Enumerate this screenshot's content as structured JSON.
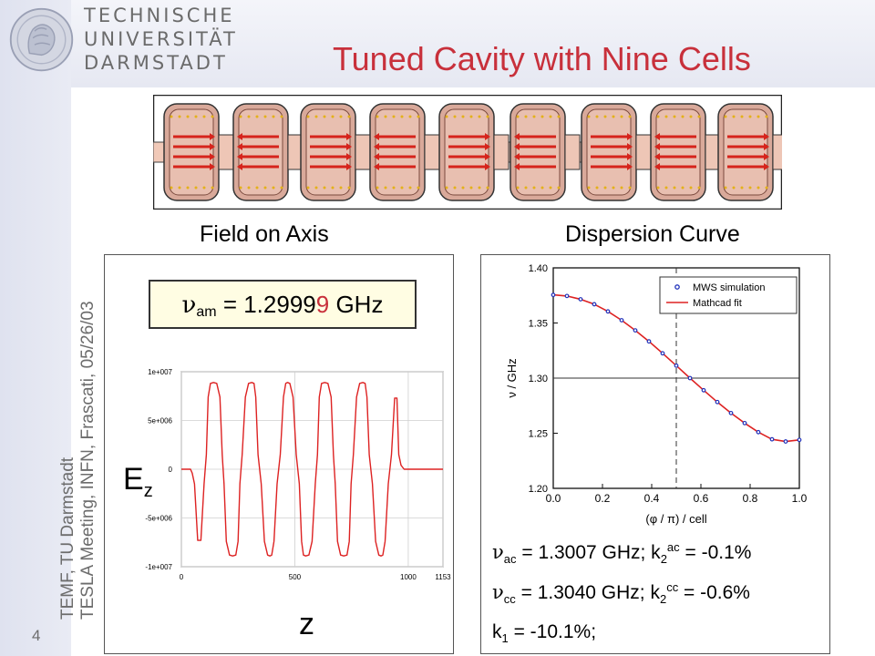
{
  "header": {
    "university": [
      "TECHNISCHE",
      "UNIVERSITÄT",
      "DARMSTADT"
    ],
    "title": "Tuned Cavity with Nine Cells"
  },
  "sidebar": {
    "line1": "TEMF, TU Darmstadt",
    "line2": "TESLA Meeting, INFN, Frascati, 05/26/03",
    "page_number": "4"
  },
  "captions": {
    "left": "Field on Axis",
    "right": "Dispersion Curve"
  },
  "left_panel": {
    "freq_symbol": "ν",
    "freq_sub": "am",
    "freq_value_black": " = 1.2999",
    "freq_value_red": "9",
    "freq_unit": " GHz",
    "ez_label": "E",
    "ez_sub": "z",
    "z_label": "z"
  },
  "right_panel": {
    "eq1": {
      "sym": "ν",
      "sub": "ac",
      "a": " = 1.3007 GHz;   k",
      "sub2": "2",
      "sup": "ac",
      "b": " =  -0.1%"
    },
    "eq2": {
      "sym": "ν",
      "sub": "cc",
      "a": " = 1.3040 GHz;   k",
      "sub2": "2",
      "sup": "cc",
      "b": " =  -0.6%"
    },
    "eq3": {
      "a": "k",
      "sub": "1",
      "b": " =  -10.1%;"
    }
  },
  "chart_data": [
    {
      "type": "line",
      "title": "",
      "xlabel": "z",
      "ylabel": "Ez",
      "xlim": [
        0,
        1153
      ],
      "ylim": [
        -10000000,
        10000000
      ],
      "x_ticks": [
        0,
        500,
        1000,
        1153
      ],
      "y_ticks": [
        10000000,
        5000000,
        0,
        -5000000,
        -10000000
      ],
      "y_tick_labels": [
        "1e+007",
        "5e+006",
        "0",
        "-5e+006",
        "-1e+007"
      ],
      "grid": true,
      "series": [
        {
          "color": "#dd2222",
          "x": [
            0,
            40,
            48,
            58,
            72,
            86,
            100,
            110,
            118,
            128,
            142,
            156,
            170,
            180,
            188,
            198,
            212,
            226,
            240,
            250,
            258,
            268,
            282,
            296,
            310,
            320,
            328,
            338,
            352,
            366,
            380,
            390,
            398,
            408,
            422,
            436,
            450,
            460,
            468,
            478,
            492,
            506,
            520,
            530,
            538,
            548,
            562,
            576,
            590,
            600,
            608,
            618,
            632,
            646,
            660,
            670,
            678,
            688,
            702,
            716,
            730,
            740,
            748,
            758,
            772,
            786,
            800,
            810,
            818,
            828,
            842,
            856,
            870,
            880,
            888,
            898,
            912,
            926,
            940,
            950,
            958,
            968,
            982,
            996,
            1010,
            1020,
            1028,
            1038,
            1052,
            1066,
            1080,
            1120,
            1153
          ],
          "y": [
            0,
            0,
            -400000,
            -1500000,
            -7300000,
            -7300000,
            -1500000,
            1500000,
            7400000,
            8800000,
            8900000,
            8800000,
            7400000,
            1500000,
            -1500000,
            -7400000,
            -8800000,
            -8900000,
            -8800000,
            -7400000,
            -1500000,
            1500000,
            7400000,
            8800000,
            8900000,
            8800000,
            7400000,
            1500000,
            -1500000,
            -7400000,
            -8800000,
            -8900000,
            -8800000,
            -7400000,
            -1500000,
            1500000,
            7400000,
            8800000,
            8900000,
            8800000,
            7400000,
            1500000,
            -1500000,
            -7400000,
            -8800000,
            -8900000,
            -8800000,
            -7400000,
            -1500000,
            1500000,
            7400000,
            8800000,
            8900000,
            8800000,
            7400000,
            1500000,
            -1500000,
            -7400000,
            -8800000,
            -8900000,
            -8800000,
            -7400000,
            -1500000,
            1500000,
            7400000,
            8800000,
            8900000,
            8800000,
            7400000,
            1500000,
            -1500000,
            -7400000,
            -8800000,
            -8900000,
            -8800000,
            -7400000,
            -1500000,
            1500000,
            7300000,
            7300000,
            1500000,
            400000,
            0,
            0,
            0,
            0,
            0,
            0,
            0,
            0,
            0,
            0,
            0
          ]
        }
      ]
    },
    {
      "type": "line",
      "title": "",
      "xlabel": "(φ / π) / cell",
      "ylabel": "ν / GHz",
      "xlim": [
        0,
        1
      ],
      "ylim": [
        1.2,
        1.4
      ],
      "x_ticks": [
        0.0,
        0.2,
        0.4,
        0.6,
        0.8,
        1.0
      ],
      "x_tick_labels": [
        "0.0",
        "0.2",
        "0.4",
        "0.6",
        "0.8",
        "1.0"
      ],
      "y_ticks": [
        1.2,
        1.25,
        1.3,
        1.35,
        1.4
      ],
      "y_tick_labels": [
        "1.20",
        "1.25",
        "1.30",
        "1.35",
        "1.40"
      ],
      "reference_lines": {
        "x": 0.5,
        "y": 1.3
      },
      "legend_position": "top-right",
      "series": [
        {
          "name": "MWS simulation",
          "kind": "markers",
          "color": "#2233bb",
          "x": [
            0.0,
            0.0556,
            0.1111,
            0.1667,
            0.2222,
            0.2778,
            0.3333,
            0.3889,
            0.4444,
            0.5,
            0.5556,
            0.6111,
            0.6667,
            0.7222,
            0.7778,
            0.8333,
            0.8889,
            0.9444,
            1.0
          ],
          "y": [
            1.3755,
            1.3745,
            1.3715,
            1.367,
            1.3605,
            1.3525,
            1.3433,
            1.3333,
            1.3225,
            1.3113,
            1.3,
            1.289,
            1.2783,
            1.2683,
            1.2592,
            1.251,
            1.2445,
            1.2425,
            1.244
          ]
        },
        {
          "name": "Mathcad fit",
          "kind": "line",
          "color": "#dd2222",
          "x": [
            0.0,
            0.0556,
            0.1111,
            0.1667,
            0.2222,
            0.2778,
            0.3333,
            0.3889,
            0.4444,
            0.5,
            0.5556,
            0.6111,
            0.6667,
            0.7222,
            0.7778,
            0.8333,
            0.8889,
            0.9444,
            1.0
          ],
          "y": [
            1.3755,
            1.3745,
            1.3715,
            1.367,
            1.3605,
            1.3525,
            1.3433,
            1.3333,
            1.3225,
            1.3113,
            1.3,
            1.289,
            1.2783,
            1.2683,
            1.2592,
            1.251,
            1.2445,
            1.2425,
            1.244
          ]
        }
      ]
    }
  ]
}
